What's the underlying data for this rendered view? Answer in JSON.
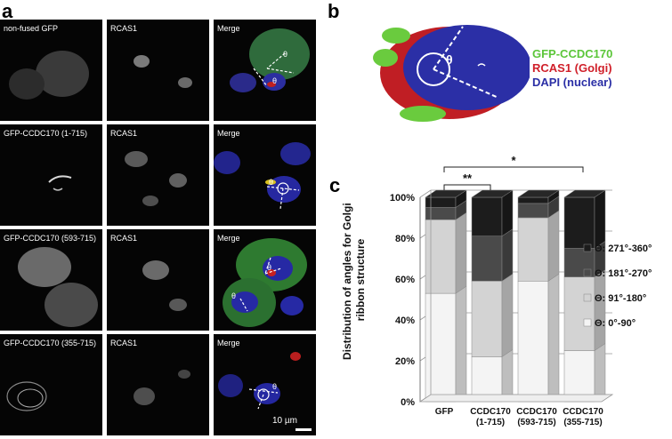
{
  "panels": {
    "a": "a",
    "b": "b",
    "c": "c"
  },
  "micro": {
    "rows": [
      {
        "fusion": "non-fused GFP",
        "rcas": "RCAS1",
        "merge": "Merge"
      },
      {
        "fusion": "GFP-CCDC170 (1-715)",
        "rcas": "RCAS1",
        "merge": "Merge"
      },
      {
        "fusion": "GFP-CCDC170 (593-715)",
        "rcas": "RCAS1",
        "merge": "Merge"
      },
      {
        "fusion": "GFP-CCDC170 (355-715)",
        "rcas": "RCAS1",
        "merge": "Merge"
      }
    ],
    "theta": "θ",
    "scale_bar": "10 µm"
  },
  "golgi3d": {
    "theta": "θ",
    "legend": [
      {
        "label": "GFP-CCDC170",
        "color": "#5cc63a"
      },
      {
        "label": "RCAS1 (Golgi)",
        "color": "#d0202a"
      },
      {
        "label": "DAPI (nuclear)",
        "color": "#2b2fa6"
      }
    ]
  },
  "chart_data": {
    "type": "bar",
    "stacked": true,
    "style": "3d",
    "categories": [
      "GFP",
      "CCDC170\n(1-715)",
      "CCDC170\n(593-715)",
      "CCDC170\n(355-715)"
    ],
    "ylabel": "Distribution of angles for Golgi\nribbon structure",
    "ylim": [
      0,
      100
    ],
    "yticks": [
      "0%",
      "20%",
      "40%",
      "60%",
      "80%",
      "100%"
    ],
    "series": [
      {
        "name": "Θ: 0°-90°",
        "color": "#f4f4f4",
        "values": [
          53,
          22,
          59,
          25
        ]
      },
      {
        "name": "Θ: 91°-180°",
        "color": "#d3d3d3",
        "values": [
          36,
          37,
          31,
          36
        ]
      },
      {
        "name": "Θ: 181°-270°",
        "color": "#4a4a4a",
        "values": [
          6,
          22,
          7,
          14
        ]
      },
      {
        "name": "Θ: 271°-360°",
        "color": "#1c1c1c",
        "values": [
          5,
          19,
          3,
          25
        ]
      }
    ],
    "significance": [
      {
        "label": "**",
        "from": 0,
        "to": 1
      },
      {
        "label": "*",
        "from": 0,
        "to": 3
      }
    ],
    "legend_position": "right",
    "grid": true
  }
}
